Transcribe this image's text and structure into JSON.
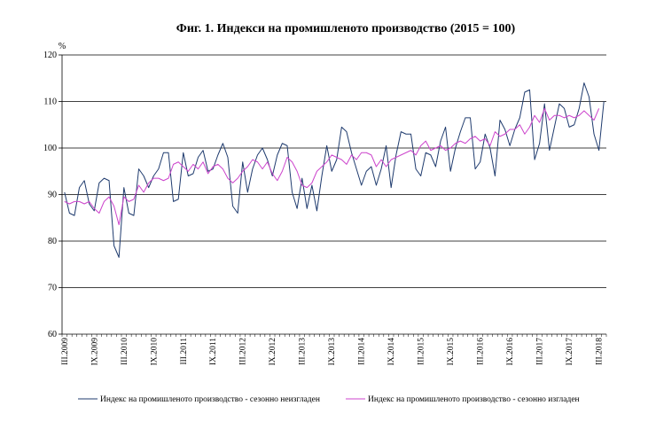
{
  "chart_data": {
    "type": "line",
    "title": "Фиг. 1. Индекси на промишленото производство (2015 = 100)",
    "ylabel": "%",
    "ylim": [
      60,
      120
    ],
    "yticks": [
      60,
      70,
      80,
      90,
      100,
      110,
      120
    ],
    "xlabels": [
      "III.2009",
      "IX.2009",
      "III.2010",
      "IX.2010",
      "III.2011",
      "IX.2011",
      "III.2012",
      "IX.2012",
      "III.2013",
      "IX.2013",
      "III.2014",
      "IX.2014",
      "III.2015",
      "IX.2015",
      "III.2016",
      "IX.2016",
      "III.2017",
      "IX.2017",
      "III.2018"
    ],
    "grid": true,
    "colors": {
      "nsa": "#1f3b6e",
      "sa": "#cc44cc",
      "grid": "#000000"
    },
    "legend": {
      "nsa_label": "Индекс на промишленото производство - сезонно неизгладен",
      "sa_label": "Индекс на промишленото производство - сезонно изгладен"
    },
    "series": [
      {
        "name": "Индекс на промишленото производство - сезонно неизгладен",
        "key": "nsa",
        "values": [
          90.5,
          86,
          85.5,
          91.5,
          93,
          88,
          86.5,
          92.5,
          93.5,
          93,
          79,
          76.5,
          91.5,
          86,
          85.5,
          95.5,
          94,
          91.5,
          94,
          95.5,
          99,
          99,
          88.5,
          89,
          99,
          94,
          94.5,
          98,
          99.5,
          95,
          95.5,
          98.5,
          101,
          98,
          87.5,
          86,
          97,
          90.5,
          95.5,
          98.5,
          100,
          97.5,
          94,
          98.5,
          101,
          100.5,
          90.5,
          87,
          93.5,
          87,
          92,
          86.5,
          94,
          100.5,
          95,
          97.5,
          104.5,
          103.5,
          99,
          95.5,
          92,
          95,
          96,
          92,
          95.5,
          100.5,
          91.5,
          98.5,
          103.5,
          103,
          103,
          95.5,
          94,
          99,
          98.5,
          96,
          101.5,
          104.5,
          95,
          100,
          103.5,
          106.5,
          106.5,
          95.5,
          97,
          103,
          100,
          94,
          106,
          104,
          100.5,
          104,
          106.5,
          112,
          112.5,
          97.5,
          101,
          109.5,
          99.5,
          104.5,
          109.5,
          108.5,
          104.5,
          105,
          108.5,
          114,
          111,
          103,
          99.5,
          110
        ]
      },
      {
        "name": "Индекс на промишленото производство - сезонно изгладен",
        "key": "sa",
        "values": [
          88.5,
          88,
          88.5,
          88.5,
          88,
          88.5,
          87,
          86,
          88.5,
          89.5,
          87.5,
          83.5,
          89.5,
          88.5,
          89,
          92,
          90.5,
          92.5,
          93.5,
          93.5,
          93,
          93.5,
          96.5,
          97,
          96,
          95,
          96.5,
          95.5,
          97,
          94.5,
          96,
          96.5,
          95.5,
          93.5,
          92.5,
          93.5,
          95,
          96,
          97.5,
          97,
          95.5,
          97,
          94.5,
          93,
          95,
          98,
          97,
          95,
          92,
          91.5,
          92.5,
          95,
          96,
          97,
          98.5,
          98,
          97.5,
          96.5,
          98.5,
          97.5,
          99,
          99,
          98.5,
          96,
          97.5,
          96,
          97.5,
          98,
          98.5,
          99,
          99.5,
          98.5,
          100.5,
          101.5,
          99.5,
          100,
          100.5,
          99.5,
          100,
          101,
          101.5,
          101,
          102,
          102.5,
          101.5,
          102,
          100.5,
          103.5,
          102.5,
          103,
          104,
          104,
          105,
          103,
          104.5,
          107,
          105.5,
          108.5,
          106,
          107,
          107,
          106.5,
          107,
          106.5,
          107,
          108,
          107,
          106,
          108.5
        ]
      }
    ]
  }
}
